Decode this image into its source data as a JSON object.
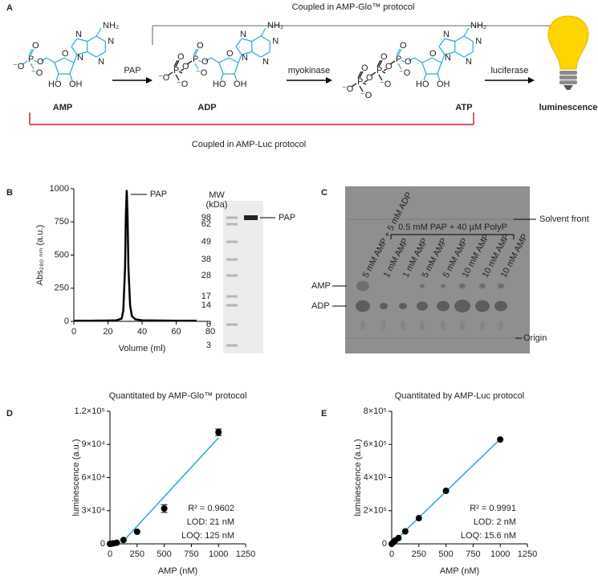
{
  "panel_labels": [
    "A",
    "B",
    "C",
    "D",
    "E"
  ],
  "scheme": {
    "glo_bracket": "Coupled in AMP-Glo™ protocol",
    "luc_bracket": "Coupled in AMP-Luc protocol",
    "compounds": [
      "AMP",
      "ADP",
      "ATP"
    ],
    "enzymes": [
      "PAP",
      "myokinase",
      "luciferase"
    ],
    "product": "luminescence",
    "atoms": {
      "amine": "NH₂",
      "nitrogen": "N",
      "oxygen": "O",
      "phosphorus": "P",
      "hydroxyl": "OH",
      "hydroxyl_left": "HO",
      "anion": "⁻O"
    }
  },
  "gel": {
    "mw_label": "MW",
    "unit_label": "(kDa)",
    "markers": [
      98,
      62,
      49,
      38,
      28,
      17,
      14,
      6,
      3
    ],
    "band_label": "PAP"
  },
  "tlc": {
    "lanes": [
      "5 mM AMP + 5 mM ADP",
      "1 mM AMP",
      "1 mM AMP",
      "5 mM AMP",
      "5 mM AMP",
      "10 mM AMP",
      "10 mM AMP",
      "10 mM AMP"
    ],
    "bracket": "0.5 mM PAP + 40 µM PolyP",
    "spots": [
      "AMP",
      "ADP"
    ],
    "solvent_front": "Solvent front",
    "origin": "Origin"
  },
  "chart_data": [
    {
      "type": "line",
      "xlabel": "Volume (ml)",
      "ylabel": "Abs₂₈₀ ₙₘ (a.u.)",
      "annotation": "PAP",
      "color": "#000000",
      "x": [
        0,
        10,
        20,
        25,
        28,
        29,
        30,
        30.5,
        31,
        31.5,
        32,
        33,
        34,
        36,
        40,
        50,
        60,
        70,
        72
      ],
      "values": [
        5,
        5,
        6,
        8,
        20,
        80,
        400,
        800,
        990,
        800,
        400,
        120,
        40,
        15,
        8,
        6,
        5,
        5,
        5
      ],
      "xlim": [
        0,
        80
      ],
      "xticks": [
        0,
        20,
        40,
        60,
        80
      ],
      "ylim": [
        0,
        1000
      ],
      "yticks": [
        0,
        250,
        500,
        750,
        1000
      ]
    },
    {
      "type": "scatter",
      "title": "Quantitated by AMP-Glo™ protocol",
      "title_color": "#808080",
      "xlabel": "AMP (nM)",
      "ylabel": "luminescence (a.u.)",
      "color": "#000000",
      "x": [
        0,
        15.6,
        31.25,
        62.5,
        125,
        250,
        500,
        1000
      ],
      "values": [
        0,
        200,
        500,
        1000,
        3500,
        11000,
        32000,
        101000
      ],
      "errors": [
        0,
        0,
        0,
        0,
        0,
        0,
        3500,
        3000
      ],
      "fit": {
        "color": "#29a8cf",
        "x": [
          100,
          1000
        ],
        "values": [
          0,
          96000
        ]
      },
      "annotations": [
        "R² = 0.9602",
        "LOD: 21 nM",
        "LOQ: 125 nM"
      ],
      "xlim": [
        0,
        1250
      ],
      "xticks": [
        0,
        250,
        500,
        750,
        1000,
        1250
      ],
      "ylim": [
        0,
        120000
      ],
      "yticks": [
        0,
        {
          "value": 30000,
          "label": "3×10⁴"
        },
        {
          "value": 60000,
          "label": "6×10⁴"
        },
        {
          "value": 90000,
          "label": "9×10⁴"
        },
        {
          "value": 120000,
          "label": "1.2×10⁵"
        }
      ]
    },
    {
      "type": "scatter",
      "title": "Quantitated by AMP-Luc protocol",
      "title_color": "#d4202a",
      "xlabel": "AMP (nM)",
      "ylabel": "luminescence (a.u.)",
      "color": "#000000",
      "x": [
        0,
        15.6,
        31.25,
        62.5,
        125,
        250,
        500,
        1000
      ],
      "values": [
        0,
        10000,
        20000,
        35000,
        75000,
        155000,
        320000,
        630000
      ],
      "fit": {
        "color": "#29a8cf",
        "x": [
          0,
          1000
        ],
        "values": [
          0,
          632000
        ]
      },
      "annotations": [
        "R² = 0.9991",
        "LOD: 2 nM",
        "LOQ: 15.6 nM"
      ],
      "xlim": [
        0,
        1250
      ],
      "xticks": [
        0,
        250,
        500,
        750,
        1000,
        1250
      ],
      "ylim": [
        0,
        800000
      ],
      "yticks": [
        0,
        {
          "value": 200000,
          "label": "2×10⁵"
        },
        {
          "value": 400000,
          "label": "4×10⁵"
        },
        {
          "value": 600000,
          "label": "6×10⁵"
        },
        {
          "value": 800000,
          "label": "8×10⁵"
        }
      ]
    }
  ]
}
